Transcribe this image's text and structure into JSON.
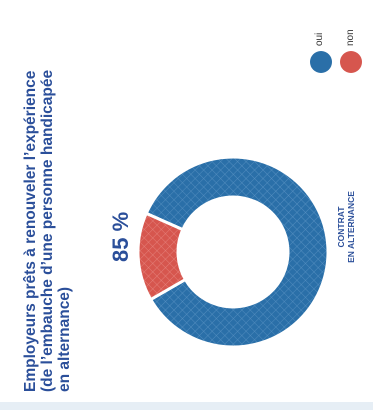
{
  "chart_data": {
    "type": "pie",
    "title": "Employeurs prêts à renouveler l’expérience (de l’embauche d’une personne handicapée en alternance)",
    "title_lines": [
      "Employeurs prêts à renouveler l’expérience",
      "(de l’embauche d’une personne handicapée",
      "en alternance)"
    ],
    "categories": [
      "oui",
      "non"
    ],
    "values": [
      85,
      15
    ],
    "colors": [
      "#2a6fa8",
      "#d6564e"
    ],
    "data_label": "85 %",
    "center_caption_lines": [
      "CONTRAT",
      "EN ALTERNANCE"
    ],
    "legend_position": "top-right"
  }
}
